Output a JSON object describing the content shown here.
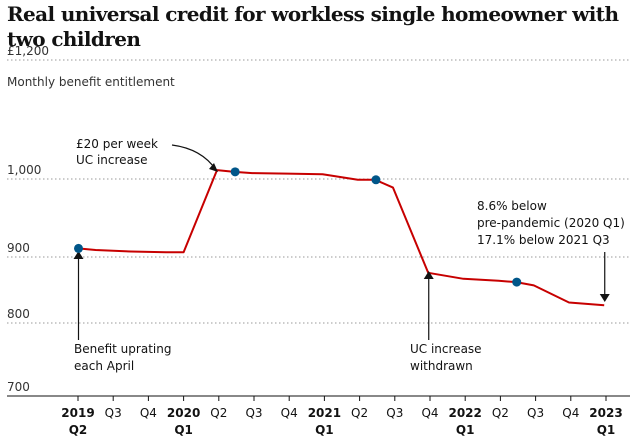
{
  "chart_data": {
    "type": "line",
    "title": "Real universal credit for workless single homeowner with two children",
    "ylabel": "Monthly benefit entitlement",
    "ylim": [
      700,
      1200
    ],
    "yticks": [
      {
        "value": 1200,
        "label": "£1,200"
      },
      {
        "value": 1000,
        "label": "1,000"
      },
      {
        "value": 900,
        "label": "900"
      },
      {
        "value": 800,
        "label": "800"
      },
      {
        "value": 700,
        "label": "700"
      }
    ],
    "xticks": [
      {
        "x": 0,
        "label": "2019",
        "sub": "Q2",
        "major": true
      },
      {
        "x": 1,
        "label": "Q3",
        "major": false
      },
      {
        "x": 2,
        "label": "Q4",
        "major": false
      },
      {
        "x": 3,
        "label": "2020",
        "sub": "Q1",
        "major": true
      },
      {
        "x": 4,
        "label": "Q2",
        "major": false
      },
      {
        "x": 5,
        "label": "Q3",
        "major": false
      },
      {
        "x": 6,
        "label": "Q4",
        "major": false
      },
      {
        "x": 7,
        "label": "2021",
        "sub": "Q1",
        "major": true
      },
      {
        "x": 8,
        "label": "Q2",
        "major": false
      },
      {
        "x": 9,
        "label": "Q3",
        "major": false
      },
      {
        "x": 10,
        "label": "Q4",
        "major": false
      },
      {
        "x": 11,
        "label": "2022",
        "sub": "Q1",
        "major": true
      },
      {
        "x": 12,
        "label": "Q2",
        "major": false
      },
      {
        "x": 13,
        "label": "Q3",
        "major": false
      },
      {
        "x": 14,
        "label": "Q4",
        "major": false
      },
      {
        "x": 15,
        "label": "2023",
        "sub": "Q1",
        "major": true
      }
    ],
    "series": [
      {
        "color": "#c70000",
        "points": [
          {
            "x": 0,
            "y": 911
          },
          {
            "x": 0.5,
            "y": 909
          },
          {
            "x": 1.5,
            "y": 907
          },
          {
            "x": 2.5,
            "y": 906
          },
          {
            "x": 3,
            "y": 906
          },
          {
            "x": 3.95,
            "y": 1015
          },
          {
            "x": 4.45,
            "y": 1012
          },
          {
            "x": 4.95,
            "y": 1010
          },
          {
            "x": 5.95,
            "y": 1009
          },
          {
            "x": 6.95,
            "y": 1008
          },
          {
            "x": 7.95,
            "y": 999
          },
          {
            "x": 8.45,
            "y": 999
          },
          {
            "x": 8.95,
            "y": 989
          },
          {
            "x": 9.95,
            "y": 876
          },
          {
            "x": 10.95,
            "y": 867
          },
          {
            "x": 11.95,
            "y": 864
          },
          {
            "x": 12.45,
            "y": 862
          },
          {
            "x": 12.95,
            "y": 857
          },
          {
            "x": 13.95,
            "y": 831
          },
          {
            "x": 14.95,
            "y": 827
          }
        ]
      }
    ],
    "markers": [
      {
        "x": 0,
        "y": 911
      },
      {
        "x": 4.45,
        "y": 1012
      },
      {
        "x": 8.45,
        "y": 999
      },
      {
        "x": 12.45,
        "y": 862
      }
    ],
    "marker_color": "#005689",
    "annotations": [
      {
        "id": "uc-increase",
        "lines": [
          "£20 per week",
          "UC increase"
        ]
      },
      {
        "id": "uprating",
        "lines": [
          "Benefit uprating",
          "each April"
        ]
      },
      {
        "id": "withdrawn",
        "lines": [
          "UC increase",
          "withdrawn"
        ]
      },
      {
        "id": "below",
        "lines": [
          "8.6% below",
          "pre-pandemic (2020 Q1)",
          "17.1% below 2021 Q3"
        ]
      }
    ],
    "grid": "dotted horizontal"
  }
}
